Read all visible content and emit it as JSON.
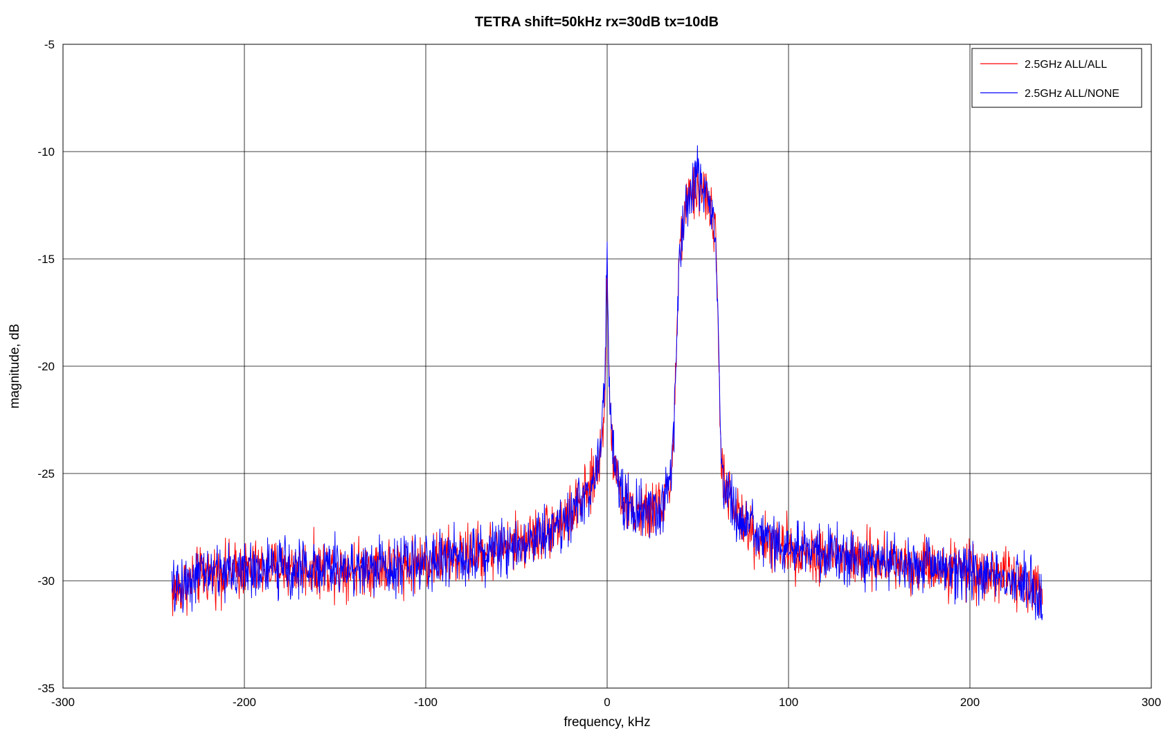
{
  "chart_data": {
    "type": "line",
    "title": "TETRA shift=50kHz rx=30dB tx=10dB",
    "xlabel": "frequency, kHz",
    "ylabel": "magnitude, dB",
    "xlim": [
      -300,
      300
    ],
    "ylim": [
      -35,
      -5
    ],
    "xticks": [
      -300,
      -200,
      -100,
      0,
      100,
      200,
      300
    ],
    "yticks": [
      -35,
      -30,
      -25,
      -20,
      -15,
      -10,
      -5
    ],
    "xtick_labels": [
      "-300",
      "-200",
      "-100",
      "0",
      "100",
      "200",
      "300"
    ],
    "ytick_labels": [
      "-35",
      "-30",
      "-25",
      "-20",
      "-15",
      "-10",
      "-5"
    ],
    "grid": true,
    "legend_position": "top-right",
    "series": [
      {
        "name": "2.5GHz ALL/ALL",
        "color": "#ff0000",
        "x": [
          -240,
          -230,
          -220,
          -200,
          -180,
          -150,
          -120,
          -100,
          -80,
          -60,
          -40,
          -30,
          -20,
          -15,
          -10,
          -7,
          -5,
          -3,
          -2,
          -1,
          -0.5,
          0,
          0.5,
          1,
          2,
          3,
          5,
          8,
          10,
          15,
          20,
          25,
          30,
          33,
          35,
          37,
          39,
          40,
          42,
          45,
          48,
          50,
          52,
          55,
          58,
          60,
          61,
          62,
          63,
          65,
          70,
          80,
          90,
          100,
          120,
          150,
          180,
          200,
          220,
          230,
          240
        ],
        "y": [
          -30.6,
          -30.0,
          -29.7,
          -29.5,
          -29.4,
          -29.4,
          -29.3,
          -29.1,
          -28.8,
          -28.5,
          -28.0,
          -27.5,
          -26.9,
          -26.4,
          -25.8,
          -25.2,
          -24.6,
          -23.6,
          -22.5,
          -20.5,
          -18.0,
          -14.1,
          -18.0,
          -21.0,
          -22.5,
          -23.5,
          -24.8,
          -26.0,
          -26.4,
          -26.8,
          -26.9,
          -26.8,
          -26.5,
          -26.0,
          -25.3,
          -22.5,
          -17.0,
          -14.5,
          -13.2,
          -12.3,
          -12.0,
          -11.8,
          -11.7,
          -12.1,
          -12.9,
          -14.5,
          -17.5,
          -21.5,
          -24.3,
          -25.5,
          -26.8,
          -27.8,
          -28.2,
          -28.5,
          -28.8,
          -29.1,
          -29.3,
          -29.5,
          -29.8,
          -30.2,
          -30.8
        ]
      },
      {
        "name": "2.5GHz ALL/NONE",
        "color": "#0000ff",
        "x": [
          -240,
          -230,
          -220,
          -200,
          -180,
          -150,
          -120,
          -100,
          -80,
          -60,
          -40,
          -30,
          -20,
          -15,
          -10,
          -7,
          -5,
          -3,
          -2,
          -1,
          -0.5,
          0,
          0.5,
          1,
          2,
          3,
          5,
          8,
          10,
          15,
          20,
          25,
          30,
          33,
          35,
          37,
          39,
          40,
          42,
          45,
          48,
          50,
          52,
          55,
          58,
          60,
          61,
          62,
          63,
          65,
          70,
          80,
          90,
          100,
          120,
          150,
          180,
          200,
          220,
          230,
          240
        ],
        "y": [
          -30.5,
          -29.9,
          -29.6,
          -29.5,
          -29.4,
          -29.4,
          -29.3,
          -29.1,
          -28.8,
          -28.5,
          -28.0,
          -27.5,
          -26.9,
          -26.4,
          -25.8,
          -25.2,
          -24.6,
          -23.4,
          -22.0,
          -19.5,
          -17.0,
          -15.0,
          -17.5,
          -21.0,
          -22.5,
          -23.5,
          -24.8,
          -26.0,
          -26.4,
          -26.8,
          -26.9,
          -26.8,
          -26.5,
          -26.0,
          -25.3,
          -22.5,
          -17.0,
          -14.5,
          -13.0,
          -12.0,
          -11.6,
          -11.4,
          -11.5,
          -12.0,
          -12.8,
          -14.5,
          -17.5,
          -21.5,
          -24.3,
          -25.5,
          -26.8,
          -27.8,
          -28.2,
          -28.5,
          -28.8,
          -29.1,
          -29.3,
          -29.5,
          -29.8,
          -30.2,
          -30.9
        ]
      }
    ]
  }
}
